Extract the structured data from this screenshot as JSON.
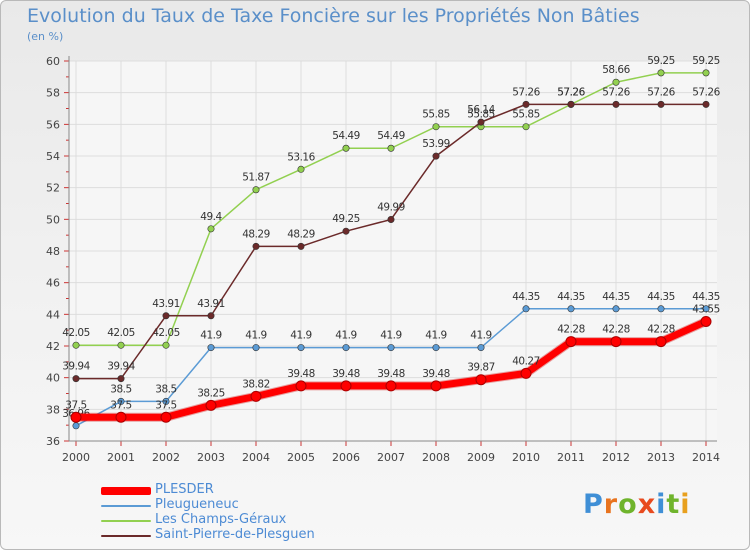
{
  "title": "Evolution du Taux de Taxe Foncière sur les Propriétés Non Bâties",
  "subtitle": "(en %)",
  "logo": {
    "text": "Proxiti",
    "letters": [
      {
        "ch": "P",
        "color": "#3f8fd6"
      },
      {
        "ch": "r",
        "color": "#e8731e"
      },
      {
        "ch": "o",
        "color": "#6fb42c"
      },
      {
        "ch": "x",
        "color": "#e84a1e"
      },
      {
        "ch": "i",
        "color": "#3f8fd6"
      },
      {
        "ch": "t",
        "color": "#6fb42c"
      },
      {
        "ch": "i",
        "color": "#e8a01e"
      }
    ]
  },
  "chart_data": {
    "type": "line",
    "title": "Evolution du Taux de Taxe Foncière sur les Propriétés Non Bâties",
    "ylabel": "(en %)",
    "x": [
      "2000",
      "2001",
      "2002",
      "2003",
      "2004",
      "2005",
      "2006",
      "2007",
      "2008",
      "2009",
      "2010",
      "2011",
      "2012",
      "2013",
      "2014"
    ],
    "ylim": [
      36,
      60
    ],
    "yticks": [
      36,
      38,
      40,
      42,
      44,
      46,
      48,
      50,
      52,
      54,
      56,
      58,
      60
    ],
    "grid": true,
    "legend_position": "bottom-left",
    "series": [
      {
        "name": "PLESDER",
        "color": "#ff0000",
        "width": 7,
        "values": [
          37.5,
          37.5,
          37.5,
          38.25,
          38.82,
          39.48,
          39.48,
          39.48,
          39.48,
          39.87,
          40.27,
          42.28,
          42.28,
          42.28,
          43.55
        ],
        "labels": [
          "37.5",
          "37.5",
          "37.5",
          "38.25",
          "38.82",
          "39.48",
          "39.48",
          "39.48",
          "39.48",
          "39.87",
          "40.27",
          "42.28",
          "42.28",
          "42.28",
          "43.55"
        ]
      },
      {
        "name": "Pleugueneuc",
        "color": "#5b9bd5",
        "width": 1.5,
        "values": [
          36.96,
          38.5,
          38.5,
          41.9,
          41.9,
          41.9,
          41.9,
          41.9,
          41.9,
          41.9,
          44.35,
          44.35,
          44.35,
          44.35,
          44.35
        ],
        "labels": [
          "36.96",
          "38.5",
          "38.5",
          "41.9",
          "41.9",
          "41.9",
          "41.9",
          "41.9",
          "41.9",
          "41.9",
          "44.35",
          "44.35",
          "44.35",
          "44.35",
          "44.35"
        ]
      },
      {
        "name": "Les Champs-Géraux",
        "color": "#92d050",
        "width": 1.5,
        "values": [
          42.05,
          42.05,
          42.05,
          49.4,
          51.87,
          53.16,
          54.49,
          54.49,
          55.85,
          55.85,
          55.85,
          57.26,
          58.66,
          59.25,
          59.25
        ],
        "labels": [
          "42.05",
          "42.05",
          "42.05",
          "49.4",
          "51.87",
          "53.16",
          "54.49",
          "54.49",
          "55.85",
          "55.85",
          "55.85",
          "57.26",
          "58.66",
          "59.25",
          "59.25"
        ]
      },
      {
        "name": "Saint-Pierre-de-Plesguen",
        "color": "#6b2a2a",
        "width": 1.5,
        "values": [
          39.94,
          39.94,
          43.91,
          43.91,
          48.29,
          48.29,
          49.25,
          49.99,
          53.99,
          56.14,
          57.26,
          57.26,
          57.26,
          57.26,
          57.26
        ],
        "labels": [
          "39.94",
          "39.94",
          "43.91",
          "43.91",
          "48.29",
          "48.29",
          "49.25",
          "49.99",
          "53.99",
          "56.14",
          "57.26",
          "57.26",
          "57.26",
          "57.26",
          "57.26"
        ]
      }
    ]
  }
}
